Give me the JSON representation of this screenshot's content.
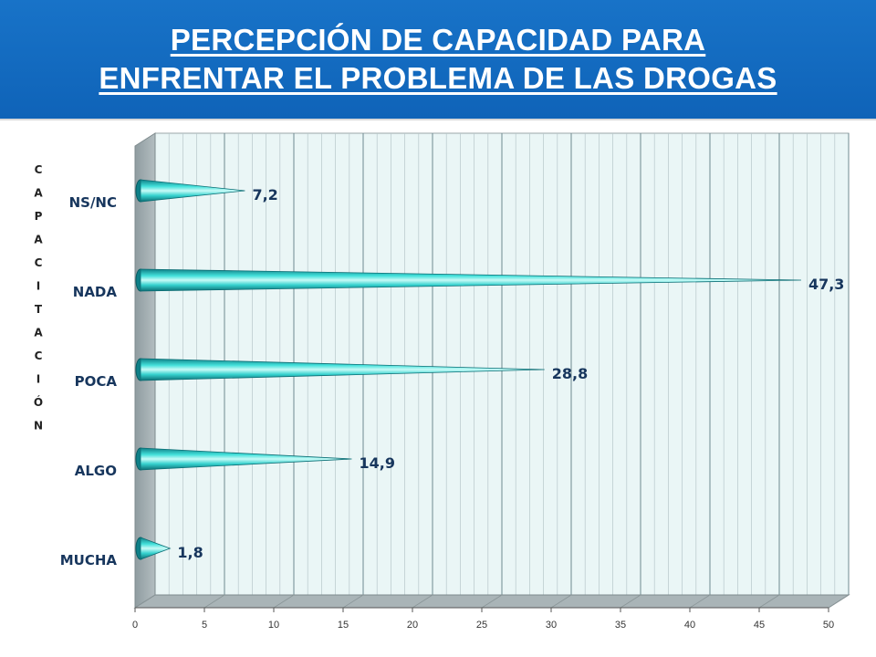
{
  "header": {
    "title_line1": "PERCEPCIÓN DE CAPACIDAD PARA",
    "title_line2": "ENFRENTAR EL PROBLEMA DE LAS DROGAS"
  },
  "chart_data": {
    "type": "bar",
    "orientation": "horizontal",
    "style": "3d-cone",
    "title": "PERCEPCIÓN DE CAPACIDAD PARA ENFRENTAR EL PROBLEMA DE LAS DROGAS",
    "ylabel": "CAPACITACIÓN",
    "xlabel": "",
    "categories": [
      "MUCHA",
      "ALGO",
      "POCA",
      "NADA",
      "NS/NC"
    ],
    "values": [
      1.8,
      14.9,
      28.8,
      47.3,
      7.2
    ],
    "value_labels": [
      "1,8",
      "14,9",
      "28,8",
      "47,3",
      "7,2"
    ],
    "xlim": [
      0,
      50
    ],
    "xticks": [
      0,
      5,
      10,
      15,
      20,
      25,
      30,
      35,
      40,
      45,
      50
    ],
    "grid": true,
    "colors": {
      "header_bg": "#1469bf",
      "bar": "#2fc9c9",
      "plot_bg": "#eaf6f6",
      "label_text": "#17365d"
    }
  }
}
